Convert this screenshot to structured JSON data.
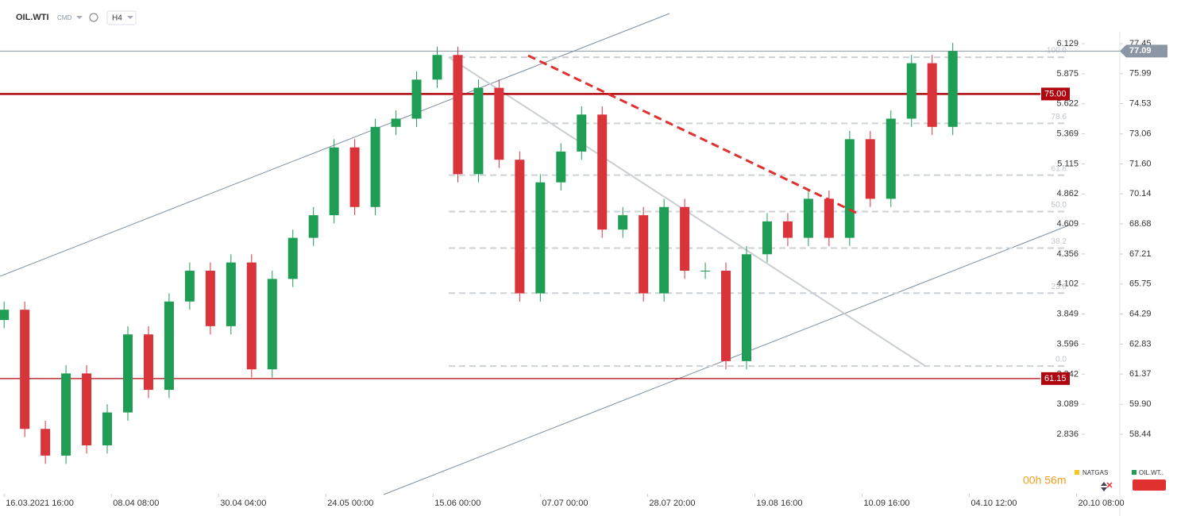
{
  "header": {
    "symbol": "OIL.WTI",
    "market": "CMD",
    "timeframe": "H4"
  },
  "footer": {
    "countdown": "00h 56m",
    "tabs": [
      "NATGAS",
      "OIL.WT.."
    ]
  },
  "chart_data": {
    "type": "candlestick",
    "x": [
      0,
      1,
      2,
      3,
      4,
      5,
      6,
      7,
      8,
      9,
      10,
      11,
      12,
      13,
      14,
      15,
      16,
      17,
      18,
      19,
      20,
      21,
      22,
      23,
      24,
      25,
      26,
      27,
      28,
      29,
      30,
      31,
      32,
      33,
      34,
      35,
      36,
      37,
      38,
      39,
      40,
      41,
      42,
      43,
      44,
      45,
      46
    ],
    "open": [
      64.0,
      64.5,
      58.7,
      57.4,
      61.4,
      57.9,
      59.5,
      63.3,
      60.6,
      64.9,
      66.4,
      63.7,
      66.8,
      61.6,
      66.0,
      68.0,
      69.1,
      72.4,
      69.5,
      73.4,
      73.8,
      75.7,
      76.9,
      71.1,
      75.3,
      71.8,
      65.3,
      70.7,
      72.2,
      74.0,
      68.4,
      69.1,
      65.3,
      69.5,
      66.4,
      66.4,
      62.0,
      67.2,
      68.8,
      68.0,
      69.9,
      68.0,
      72.8,
      69.9,
      73.8,
      76.5,
      73.4
    ],
    "high": [
      64.9,
      64.9,
      59.1,
      61.8,
      61.8,
      59.9,
      63.7,
      63.7,
      65.3,
      66.8,
      66.8,
      67.2,
      67.2,
      66.4,
      68.4,
      69.5,
      72.8,
      72.8,
      73.8,
      74.2,
      76.1,
      77.3,
      77.3,
      75.7,
      75.7,
      72.2,
      71.1,
      72.6,
      74.4,
      74.4,
      69.5,
      69.5,
      69.9,
      69.9,
      66.8,
      66.8,
      67.6,
      69.2,
      69.2,
      70.3,
      70.3,
      73.2,
      73.2,
      74.2,
      76.9,
      76.9,
      77.49
    ],
    "low": [
      63.6,
      58.3,
      57.0,
      57.0,
      57.5,
      57.5,
      59.1,
      60.2,
      60.2,
      64.5,
      63.3,
      63.3,
      61.2,
      61.2,
      65.6,
      67.6,
      68.7,
      69.1,
      69.1,
      73.0,
      73.4,
      75.3,
      70.7,
      70.7,
      71.4,
      64.9,
      64.9,
      70.3,
      71.8,
      68.0,
      68.0,
      64.9,
      64.9,
      66.0,
      66.0,
      61.6,
      61.6,
      66.8,
      67.6,
      67.6,
      67.6,
      67.6,
      69.5,
      69.5,
      73.4,
      73.0,
      73.0
    ],
    "close": [
      64.5,
      58.7,
      57.4,
      61.4,
      57.9,
      59.5,
      63.3,
      60.6,
      64.9,
      66.4,
      63.7,
      66.8,
      61.6,
      66.0,
      68.0,
      69.1,
      72.4,
      69.5,
      73.4,
      73.8,
      75.7,
      76.9,
      71.1,
      75.3,
      71.8,
      65.3,
      70.7,
      72.2,
      74.0,
      68.4,
      69.1,
      65.3,
      69.5,
      66.4,
      66.4,
      62.0,
      67.2,
      68.8,
      68.0,
      69.9,
      68.0,
      72.8,
      69.9,
      73.8,
      76.5,
      73.4,
      77.09
    ],
    "up_color": "#1f9d55",
    "down_color": "#d9343a",
    "xlim": [
      -0.2,
      54.1
    ],
    "xticks": [
      {
        "value": 0,
        "label": "16.03.2021 16:00"
      },
      {
        "value": 5.2,
        "label": "08.04 08:00"
      },
      {
        "value": 10.4,
        "label": "30.04 04:00"
      },
      {
        "value": 15.6,
        "label": "24.05 00:00"
      },
      {
        "value": 20.8,
        "label": "15.06 00:00"
      },
      {
        "value": 26,
        "label": "07.07 00:00"
      },
      {
        "value": 31.2,
        "label": "28.07 20:00"
      },
      {
        "value": 36.4,
        "label": "19.08 16:00"
      },
      {
        "value": 41.6,
        "label": "10.09 16:00"
      },
      {
        "value": 46.8,
        "label": "04.10 12:00"
      },
      {
        "value": 52,
        "label": "20.10 08:00"
      }
    ],
    "ylim": [
      55.62,
      77.45
    ],
    "yticks": [
      77.45,
      75.99,
      74.53,
      73.06,
      {
        "value": 71.6,
        "label": "71.60"
      },
      70.14,
      68.68,
      67.21,
      65.75,
      64.29,
      62.83,
      61.37,
      {
        "value": 59.9,
        "label": "59.90"
      },
      58.44
    ],
    "y2lim": [
      2.347,
      6.129
    ],
    "y2ticks": [
      6.129,
      5.875,
      5.622,
      5.369,
      5.115,
      4.862,
      4.609,
      4.356,
      4.102,
      3.849,
      3.596,
      3.342,
      3.089,
      2.836
    ],
    "price_lines": [
      {
        "value": 77.09,
        "label": "77.09",
        "color": "#8a96a3"
      },
      {
        "value": 75,
        "label": "75.00",
        "color": "#b0060f"
      },
      {
        "value": 61.15,
        "label": "61.15",
        "color": "#b0060f"
      }
    ],
    "fib_levels": [
      {
        "value": 76.79,
        "label": "100.0"
      },
      {
        "value": 73.57,
        "label": "78.6"
      },
      {
        "value": 71.05,
        "label": "61.8"
      },
      {
        "value": 69.28,
        "label": "50.0"
      },
      {
        "value": 67.5,
        "label": "38.2"
      },
      {
        "value": 65.31,
        "label": "23.6"
      },
      {
        "value": 61.76,
        "label": "0.0"
      }
    ]
  }
}
